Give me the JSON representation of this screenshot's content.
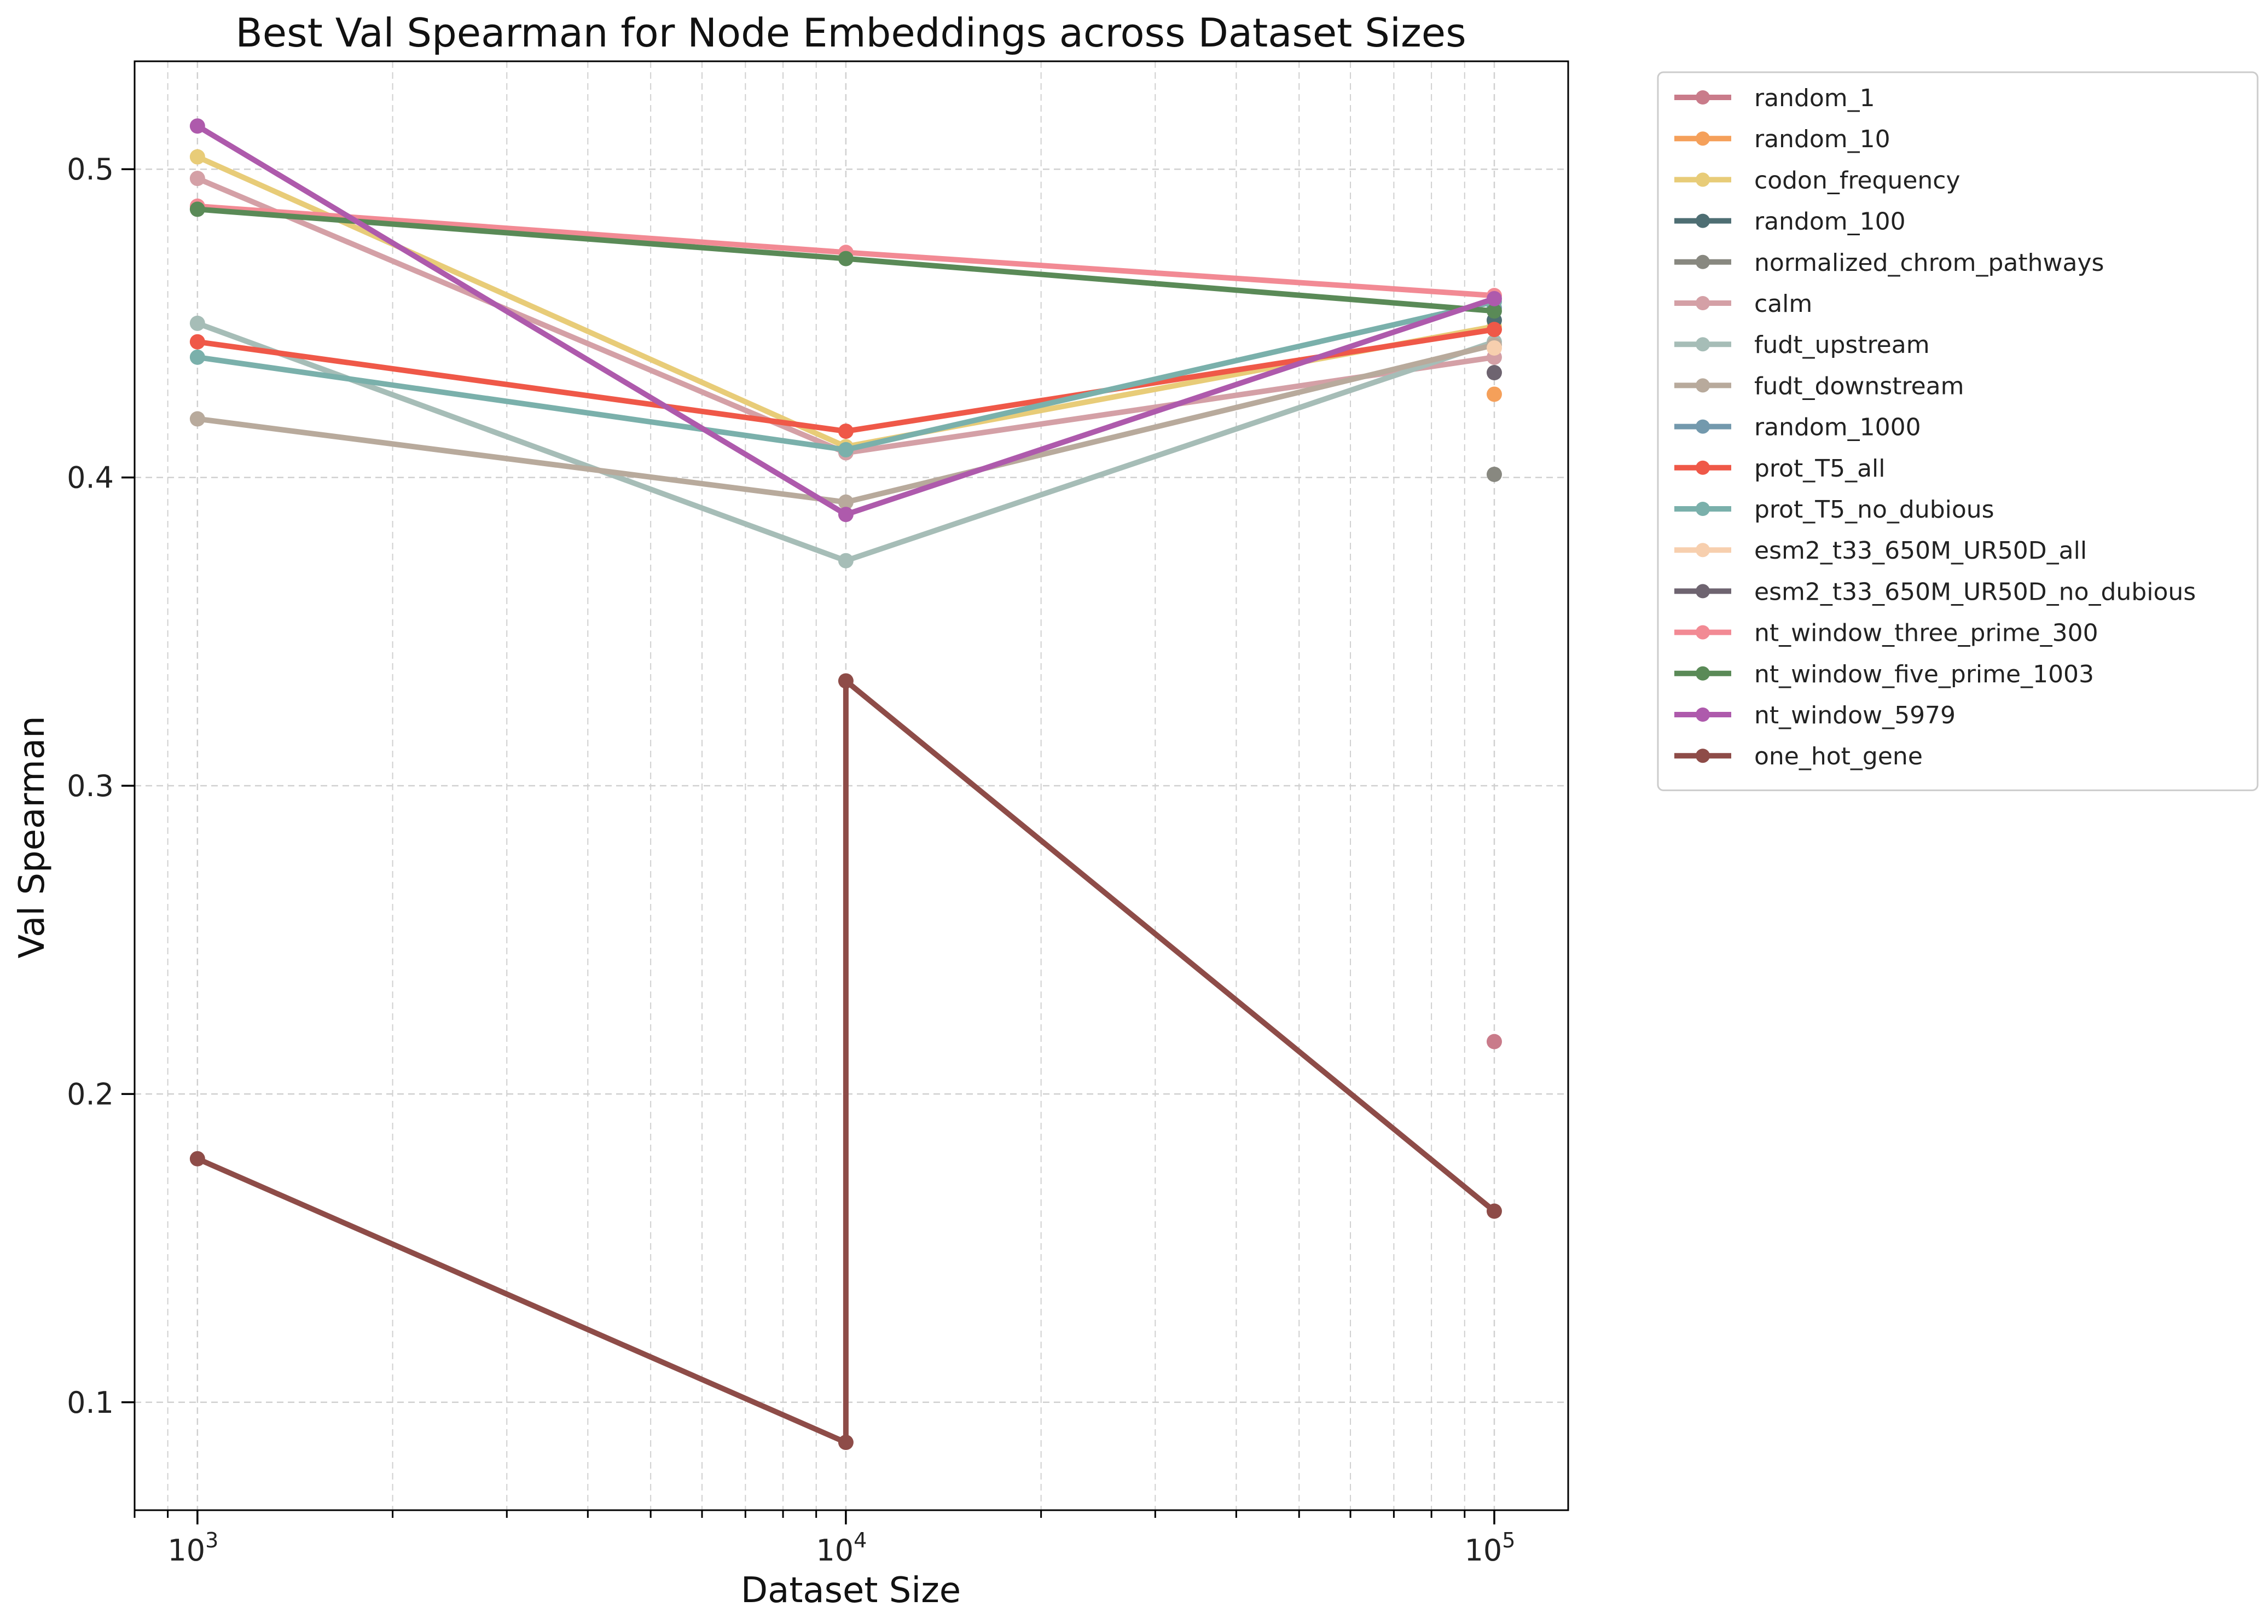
{
  "chart_data": {
    "type": "line",
    "title": "Best Val Spearman for Node Embeddings across Dataset Sizes",
    "xlabel": "Dataset Size",
    "ylabel": "Val Spearman",
    "x_scale": "log",
    "xlim": [
      800,
      130000
    ],
    "ylim": [
      0.065,
      0.535
    ],
    "x_ticks": [
      {
        "value": 1000,
        "base": "10",
        "exp": "3"
      },
      {
        "value": 10000,
        "base": "10",
        "exp": "4"
      },
      {
        "value": 100000,
        "base": "10",
        "exp": "5"
      }
    ],
    "y_ticks": [
      0.1,
      0.2,
      0.3,
      0.4,
      0.5
    ],
    "y_tick_labels": [
      "0.1",
      "0.2",
      "0.3",
      "0.4",
      "0.5"
    ],
    "grid": true,
    "legend_position": "outside-right",
    "series": [
      {
        "name": "random_1",
        "color": "#c97b8a",
        "points": [
          [
            100000,
            0.217
          ]
        ]
      },
      {
        "name": "random_10",
        "color": "#f5a05a",
        "points": [
          [
            100000,
            0.427
          ]
        ]
      },
      {
        "name": "codon_frequency",
        "color": "#e8cc78",
        "points": [
          [
            1000,
            0.504
          ],
          [
            10000,
            0.41
          ],
          [
            100000,
            0.449
          ]
        ]
      },
      {
        "name": "random_100",
        "color": "#4e6e73",
        "points": [
          [
            100000,
            0.451
          ]
        ]
      },
      {
        "name": "normalized_chrom_pathways",
        "color": "#888880",
        "points": [
          [
            100000,
            0.401
          ]
        ]
      },
      {
        "name": "calm",
        "color": "#d4a0a6",
        "points": [
          [
            1000,
            0.497
          ],
          [
            10000,
            0.408
          ],
          [
            100000,
            0.439
          ]
        ]
      },
      {
        "name": "fudt_upstream",
        "color": "#a6bdb7",
        "points": [
          [
            1000,
            0.45
          ],
          [
            10000,
            0.373
          ],
          [
            100000,
            0.444
          ]
        ]
      },
      {
        "name": "fudt_downstream",
        "color": "#b8aa9c",
        "points": [
          [
            1000,
            0.419
          ],
          [
            10000,
            0.392
          ],
          [
            100000,
            0.443
          ]
        ]
      },
      {
        "name": "random_1000",
        "color": "#7399ad",
        "points": [
          [
            100000,
            0.455
          ]
        ]
      },
      {
        "name": "prot_T5_all",
        "color": "#ef5848",
        "points": [
          [
            1000,
            0.444
          ],
          [
            10000,
            0.415
          ],
          [
            100000,
            0.448
          ]
        ]
      },
      {
        "name": "prot_T5_no_dubious",
        "color": "#7ab0ab",
        "points": [
          [
            1000,
            0.439
          ],
          [
            10000,
            0.409
          ],
          [
            100000,
            0.457
          ]
        ]
      },
      {
        "name": "esm2_t33_650M_UR50D_all",
        "color": "#f7cfae",
        "points": [
          [
            100000,
            0.442
          ]
        ]
      },
      {
        "name": "esm2_t33_650M_UR50D_no_dubious",
        "color": "#6e6470",
        "points": [
          [
            100000,
            0.434
          ]
        ]
      },
      {
        "name": "nt_window_three_prime_300",
        "color": "#f28a94",
        "points": [
          [
            1000,
            0.488
          ],
          [
            10000,
            0.473
          ],
          [
            100000,
            0.459
          ]
        ]
      },
      {
        "name": "nt_window_five_prime_1003",
        "color": "#5a8a57",
        "points": [
          [
            1000,
            0.487
          ],
          [
            10000,
            0.471
          ],
          [
            100000,
            0.454
          ]
        ]
      },
      {
        "name": "nt_window_5979",
        "color": "#ae5aac",
        "points": [
          [
            1000,
            0.514
          ],
          [
            10000,
            0.388
          ],
          [
            100000,
            0.458
          ]
        ]
      },
      {
        "name": "one_hot_gene",
        "color": "#8e4c48",
        "points": [
          [
            1000,
            0.179
          ],
          [
            10000,
            0.087
          ],
          [
            10000,
            0.334
          ],
          [
            100000,
            0.162
          ]
        ]
      }
    ]
  }
}
